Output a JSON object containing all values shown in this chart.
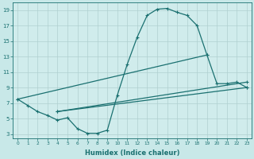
{
  "bg_color": "#c8e8e8",
  "plot_bg": "#d0ecec",
  "line_color": "#1a7070",
  "grid_color": "#b0d0d0",
  "xlabel": "Humidex (Indice chaleur)",
  "xlim": [
    -0.5,
    23.5
  ],
  "ylim": [
    2.5,
    20.0
  ],
  "xtick_vals": [
    0,
    1,
    2,
    3,
    4,
    5,
    6,
    7,
    8,
    9,
    10,
    11,
    12,
    13,
    14,
    15,
    16,
    17,
    18,
    19,
    20,
    21,
    22,
    23
  ],
  "ytick_vals": [
    3,
    5,
    7,
    9,
    11,
    13,
    15,
    17,
    19
  ],
  "line1_x": [
    0,
    1,
    2,
    3,
    4,
    5,
    6,
    7,
    8,
    9,
    10,
    11,
    12,
    13,
    14,
    15,
    16,
    17,
    18,
    19,
    20,
    21,
    22,
    23
  ],
  "line1_y": [
    7.5,
    6.7,
    5.9,
    5.4,
    4.8,
    5.1,
    3.7,
    3.1,
    3.1,
    3.5,
    8.0,
    12.0,
    15.5,
    18.3,
    19.1,
    19.2,
    18.7,
    18.3,
    17.0,
    13.2,
    9.5,
    9.5,
    9.7,
    9.0
  ],
  "line2_x": [
    0,
    19
  ],
  "line2_y": [
    7.5,
    13.2
  ],
  "line3_x": [
    4,
    23
  ],
  "line3_y": [
    5.9,
    9.7
  ],
  "line4_x": [
    4,
    23
  ],
  "line4_y": [
    5.9,
    9.0
  ]
}
